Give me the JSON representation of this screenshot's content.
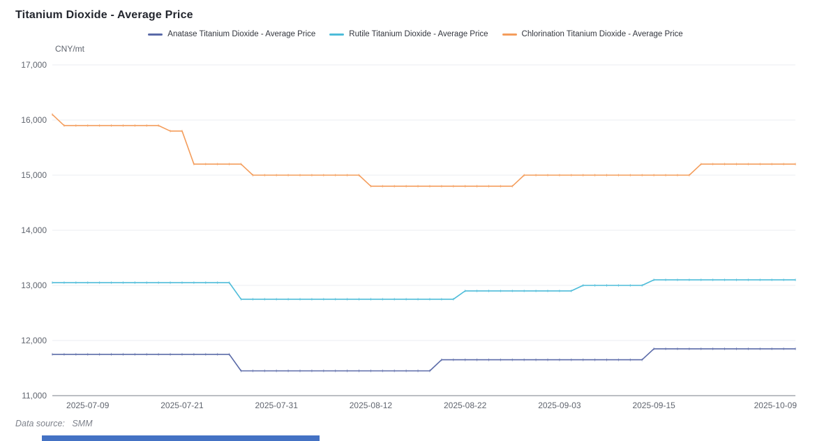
{
  "header": {
    "title": "Titanium Dioxide - Average Price"
  },
  "legend": {
    "items": [
      {
        "label": "Anatase Titanium Dioxide - Average Price",
        "color": "#5a6aa8"
      },
      {
        "label": "Rutile Titanium Dioxide - Average Price",
        "color": "#4dbcd9"
      },
      {
        "label": "Chlorination Titanium Dioxide - Average Price",
        "color": "#f49d5c"
      }
    ]
  },
  "footer": {
    "data_source_label": "Data source:",
    "data_source_value": "SMM",
    "accent_bar_color": "#4472c4"
  },
  "colors": {
    "grid_line": "#ebedf0",
    "axis_line": "#777c87",
    "tick_text": "#5f646e"
  },
  "chart_data": {
    "type": "line",
    "title": "Titanium Dioxide - Average Price",
    "unit_label": "CNY/mt",
    "ylabel": "CNY/mt",
    "xlabel": "",
    "ylim": [
      11000,
      17000
    ],
    "y_ticks": [
      11000,
      12000,
      13000,
      14000,
      15000,
      16000,
      17000
    ],
    "grid": true,
    "legend_position": "top",
    "x": [
      "2025-07-04",
      "2025-07-07",
      "2025-07-08",
      "2025-07-09",
      "2025-07-10",
      "2025-07-11",
      "2025-07-14",
      "2025-07-15",
      "2025-07-16",
      "2025-07-17",
      "2025-07-18",
      "2025-07-21",
      "2025-07-22",
      "2025-07-23",
      "2025-07-24",
      "2025-07-25",
      "2025-07-28",
      "2025-07-29",
      "2025-07-30",
      "2025-07-31",
      "2025-08-01",
      "2025-08-04",
      "2025-08-05",
      "2025-08-06",
      "2025-08-07",
      "2025-08-08",
      "2025-08-11",
      "2025-08-12",
      "2025-08-13",
      "2025-08-14",
      "2025-08-15",
      "2025-08-18",
      "2025-08-19",
      "2025-08-20",
      "2025-08-21",
      "2025-08-22",
      "2025-08-25",
      "2025-08-26",
      "2025-08-27",
      "2025-08-28",
      "2025-08-29",
      "2025-09-01",
      "2025-09-02",
      "2025-09-03",
      "2025-09-04",
      "2025-09-05",
      "2025-09-08",
      "2025-09-09",
      "2025-09-10",
      "2025-09-11",
      "2025-09-12",
      "2025-09-15",
      "2025-09-16",
      "2025-09-17",
      "2025-09-18",
      "2025-09-19",
      "2025-09-22",
      "2025-09-23",
      "2025-09-24",
      "2025-09-25",
      "2025-09-26",
      "2025-09-29",
      "2025-09-30",
      "2025-10-09"
    ],
    "x_tick_indices": [
      3,
      11,
      19,
      27,
      35,
      43,
      51,
      63
    ],
    "x_tick_labels": [
      "2025-07-09",
      "2025-07-21",
      "2025-07-31",
      "2025-08-12",
      "2025-08-22",
      "2025-09-03",
      "2025-09-15",
      "2025-10-09"
    ],
    "series": [
      {
        "name": "Anatase Titanium Dioxide - Average Price",
        "color": "#5a6aa8",
        "values": [
          11750,
          11750,
          11750,
          11750,
          11750,
          11750,
          11750,
          11750,
          11750,
          11750,
          11750,
          11750,
          11750,
          11750,
          11750,
          11750,
          11450,
          11450,
          11450,
          11450,
          11450,
          11450,
          11450,
          11450,
          11450,
          11450,
          11450,
          11450,
          11450,
          11450,
          11450,
          11450,
          11450,
          11650,
          11650,
          11650,
          11650,
          11650,
          11650,
          11650,
          11650,
          11650,
          11650,
          11650,
          11650,
          11650,
          11650,
          11650,
          11650,
          11650,
          11650,
          11850,
          11850,
          11850,
          11850,
          11850,
          11850,
          11850,
          11850,
          11850,
          11850,
          11850,
          11850,
          11850
        ]
      },
      {
        "name": "Rutile Titanium Dioxide - Average Price",
        "color": "#4dbcd9",
        "values": [
          13050,
          13050,
          13050,
          13050,
          13050,
          13050,
          13050,
          13050,
          13050,
          13050,
          13050,
          13050,
          13050,
          13050,
          13050,
          13050,
          12750,
          12750,
          12750,
          12750,
          12750,
          12750,
          12750,
          12750,
          12750,
          12750,
          12750,
          12750,
          12750,
          12750,
          12750,
          12750,
          12750,
          12750,
          12750,
          12900,
          12900,
          12900,
          12900,
          12900,
          12900,
          12900,
          12900,
          12900,
          12900,
          13000,
          13000,
          13000,
          13000,
          13000,
          13000,
          13100,
          13100,
          13100,
          13100,
          13100,
          13100,
          13100,
          13100,
          13100,
          13100,
          13100,
          13100,
          13100
        ]
      },
      {
        "name": "Chlorination Titanium Dioxide - Average Price",
        "color": "#f49d5c",
        "values": [
          16100,
          15900,
          15900,
          15900,
          15900,
          15900,
          15900,
          15900,
          15900,
          15900,
          15800,
          15800,
          15200,
          15200,
          15200,
          15200,
          15200,
          15000,
          15000,
          15000,
          15000,
          15000,
          15000,
          15000,
          15000,
          15000,
          15000,
          14800,
          14800,
          14800,
          14800,
          14800,
          14800,
          14800,
          14800,
          14800,
          14800,
          14800,
          14800,
          14800,
          15000,
          15000,
          15000,
          15000,
          15000,
          15000,
          15000,
          15000,
          15000,
          15000,
          15000,
          15000,
          15000,
          15000,
          15000,
          15200,
          15200,
          15200,
          15200,
          15200,
          15200,
          15200,
          15200,
          15200
        ]
      }
    ]
  }
}
